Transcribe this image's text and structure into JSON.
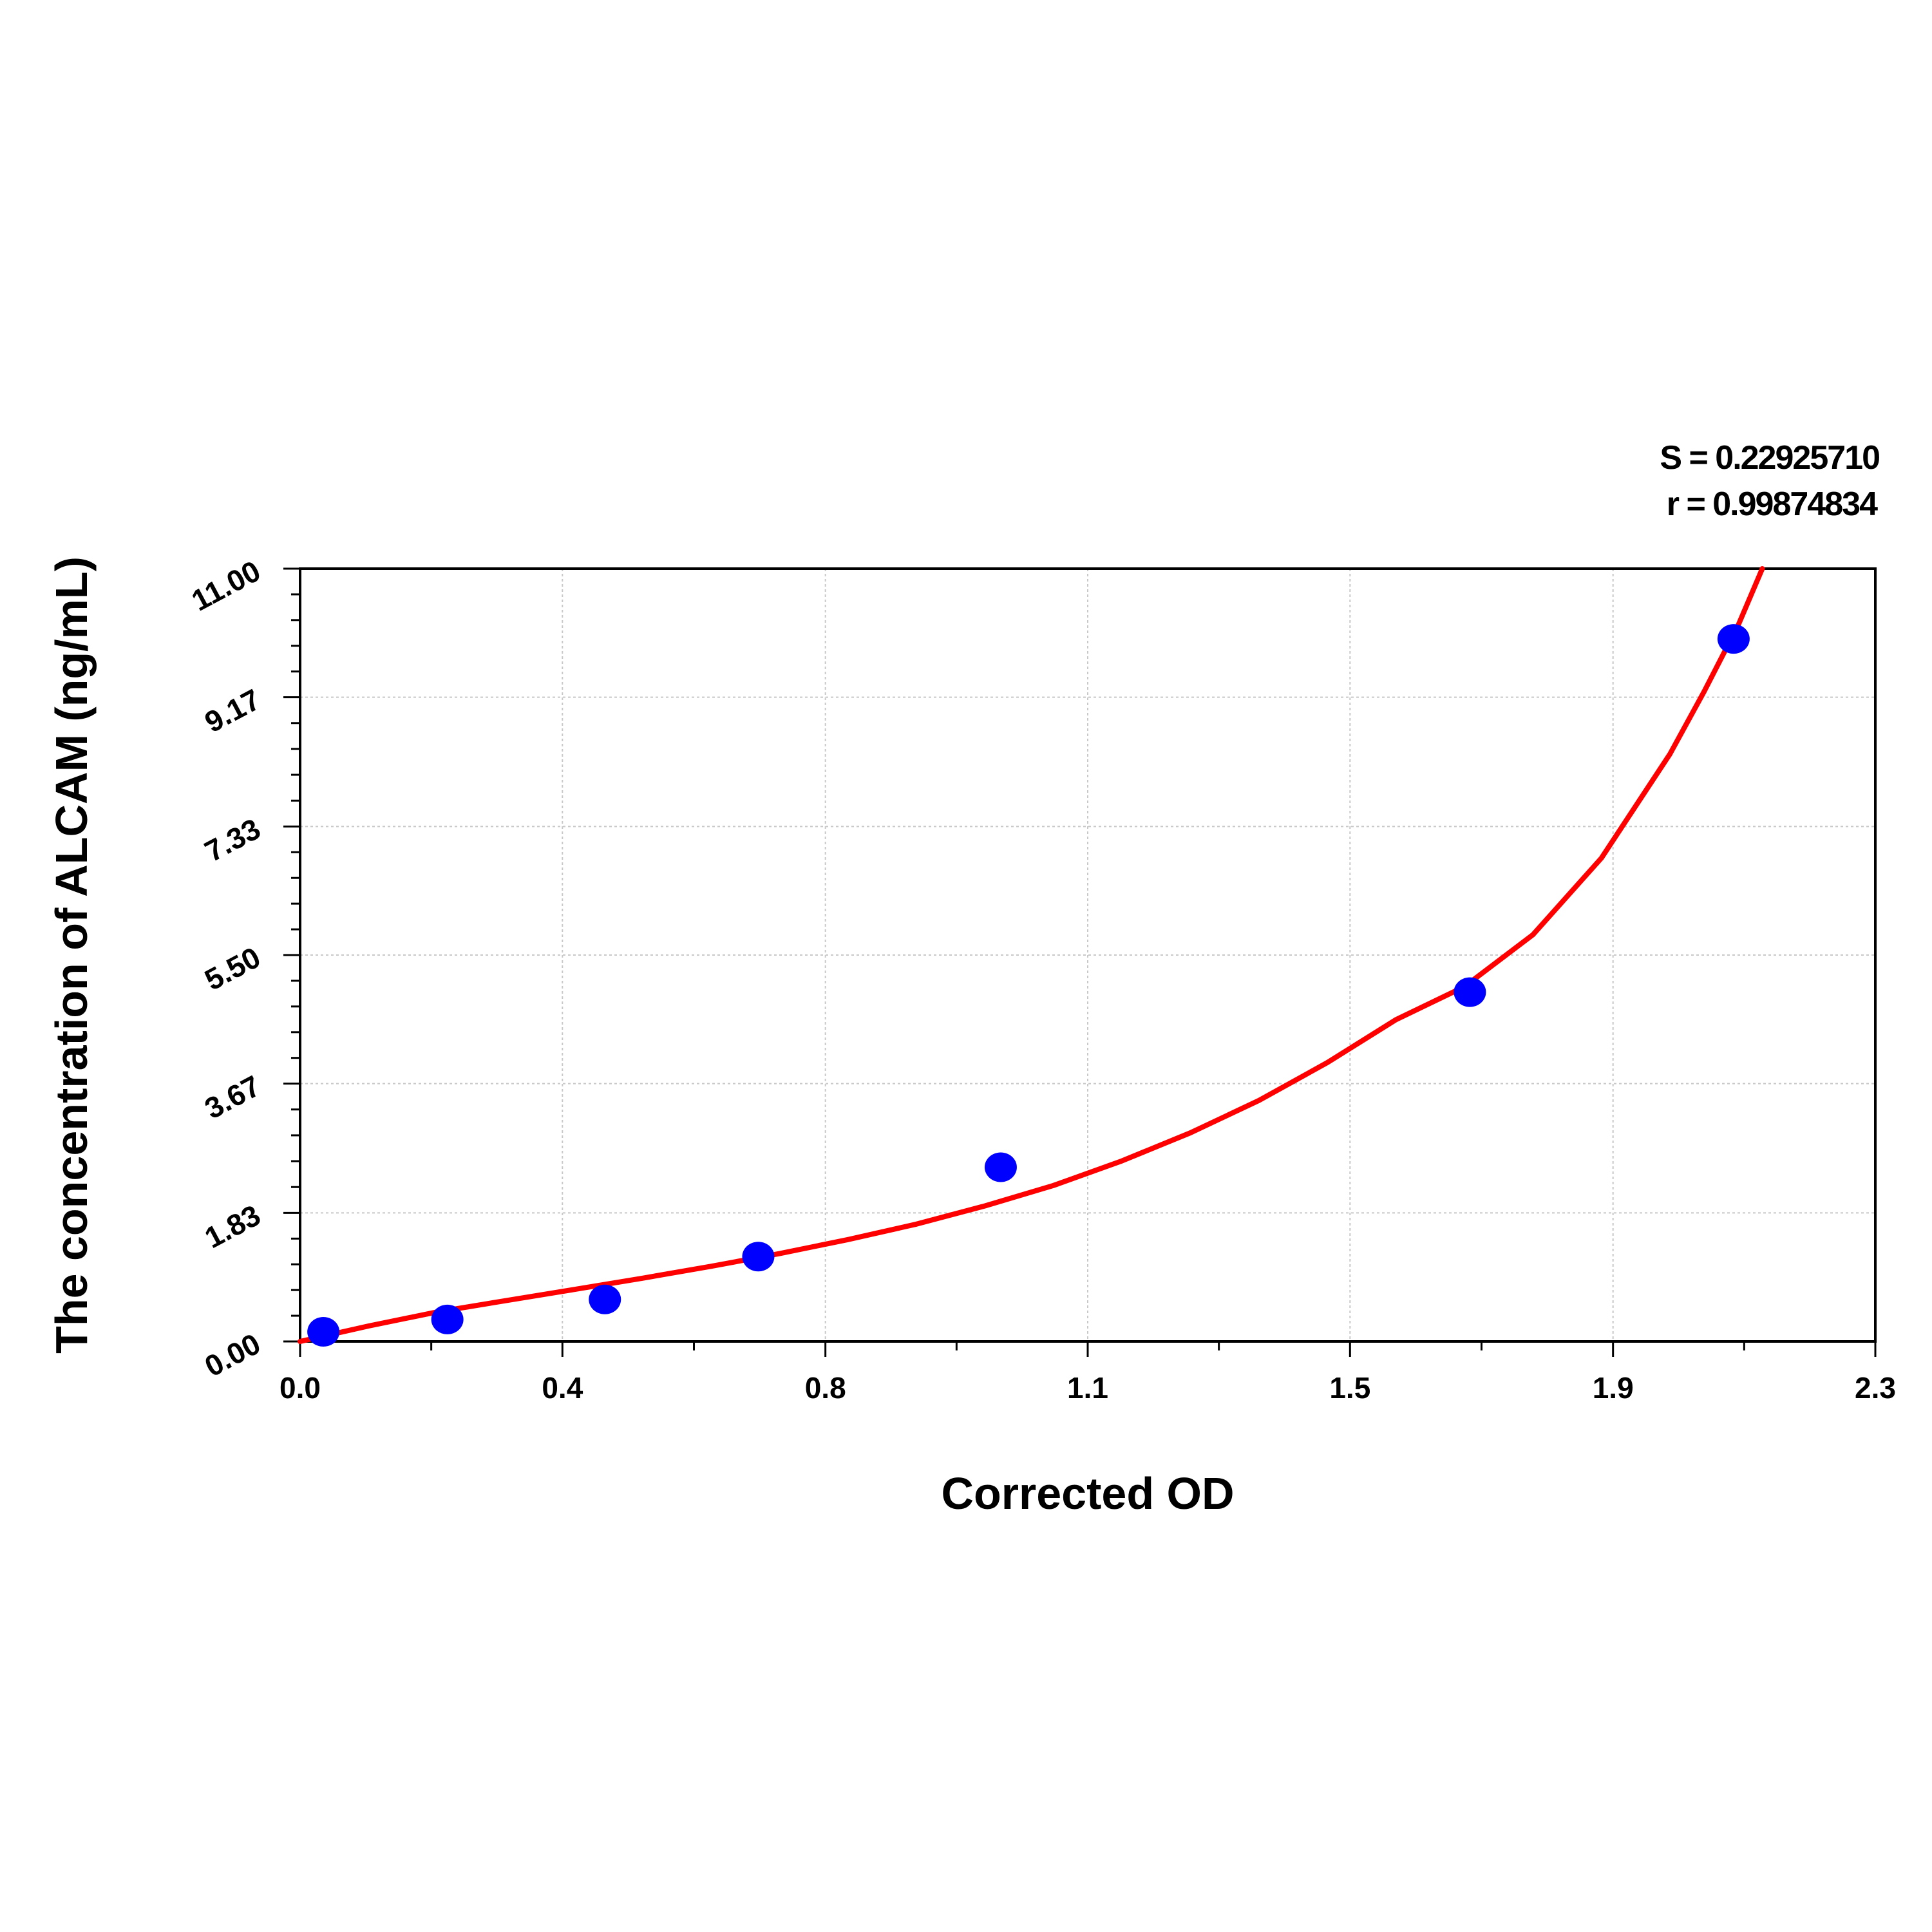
{
  "chart_data": {
    "type": "scatter",
    "title": "",
    "xlabel": "Corrected OD",
    "ylabel": "The concentration of ALCAM (ng/mL)",
    "xlim": [
      0.0,
      2.3
    ],
    "ylim": [
      0.0,
      11.0
    ],
    "x_ticks": [
      "0.0",
      "0.4",
      "0.8",
      "1.1",
      "1.5",
      "1.9",
      "2.3"
    ],
    "x_tick_values": [
      0.0,
      0.383,
      0.767,
      1.15,
      1.533,
      1.917,
      2.3
    ],
    "y_ticks": [
      "0.00",
      "1.83",
      "3.67",
      "5.50",
      "7.33",
      "9.17",
      "11.00"
    ],
    "y_tick_values": [
      0.0,
      1.83,
      3.67,
      5.5,
      7.33,
      9.17,
      11.0
    ],
    "grid": true,
    "stats": {
      "s": "S = 0.22925710",
      "r": "r = 0.99874834"
    },
    "series": [
      {
        "kind": "scatter",
        "color": "#0000ff",
        "points": [
          {
            "x": 0.034,
            "y": 0.137
          },
          {
            "x": 0.215,
            "y": 0.313
          },
          {
            "x": 0.445,
            "y": 0.598
          },
          {
            "x": 0.669,
            "y": 1.208
          },
          {
            "x": 1.023,
            "y": 2.48
          },
          {
            "x": 1.708,
            "y": 4.972
          },
          {
            "x": 2.093,
            "y": 10.0
          }
        ]
      },
      {
        "kind": "line",
        "color": "#ff0000",
        "points": [
          {
            "x": 0.0,
            "y": 0.0
          },
          {
            "x": 0.1,
            "y": 0.22
          },
          {
            "x": 0.2,
            "y": 0.42
          },
          {
            "x": 0.3,
            "y": 0.58
          },
          {
            "x": 0.4,
            "y": 0.74
          },
          {
            "x": 0.5,
            "y": 0.9
          },
          {
            "x": 0.6,
            "y": 1.07
          },
          {
            "x": 0.7,
            "y": 1.25
          },
          {
            "x": 0.8,
            "y": 1.45
          },
          {
            "x": 0.9,
            "y": 1.67
          },
          {
            "x": 1.0,
            "y": 1.93
          },
          {
            "x": 1.1,
            "y": 2.22
          },
          {
            "x": 1.2,
            "y": 2.57
          },
          {
            "x": 1.3,
            "y": 2.97
          },
          {
            "x": 1.4,
            "y": 3.43
          },
          {
            "x": 1.5,
            "y": 3.97
          },
          {
            "x": 1.6,
            "y": 4.58
          },
          {
            "x": 1.7,
            "y": 5.05
          },
          {
            "x": 1.8,
            "y": 5.79
          },
          {
            "x": 1.9,
            "y": 6.88
          },
          {
            "x": 2.0,
            "y": 8.36
          },
          {
            "x": 2.05,
            "y": 9.25
          },
          {
            "x": 2.1,
            "y": 10.2
          },
          {
            "x": 2.135,
            "y": 11.0
          }
        ]
      }
    ]
  }
}
